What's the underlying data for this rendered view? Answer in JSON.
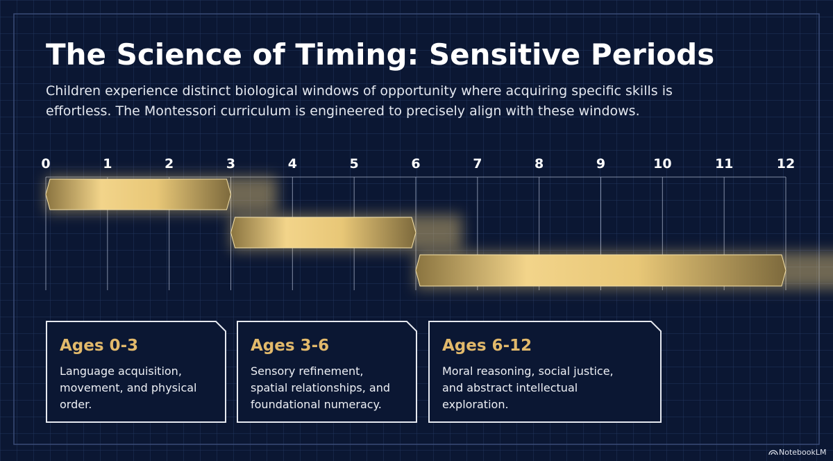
{
  "title": "The Science of Timing: Sensitive Periods",
  "subtitle": [
    "Children experience distinct biological windows of opportunity where acquiring specific skills is",
    "effortless. The Montessori curriculum is engineered to precisely align with these windows."
  ],
  "chart_data": {
    "type": "range",
    "xlim": [
      0,
      12
    ],
    "xticks": [
      0,
      1,
      2,
      3,
      4,
      5,
      6,
      7,
      8,
      9,
      10,
      11,
      12
    ],
    "grid": true,
    "color": "#e9c97a",
    "bars": [
      {
        "start": 0,
        "end": 3
      },
      {
        "start": 3,
        "end": 6
      },
      {
        "start": 6,
        "end": 12
      }
    ]
  },
  "cards": [
    {
      "title": "Ages 0-3",
      "lines": [
        "Language acquisition,",
        "movement, and physical",
        "order."
      ]
    },
    {
      "title": "Ages 3-6",
      "lines": [
        "Sensory refinement,",
        "spatial relationships, and",
        "foundational numeracy."
      ]
    },
    {
      "title": "Ages 6-12",
      "lines": [
        "Moral reasoning, social justice,",
        "and abstract intellectual",
        "exploration."
      ]
    }
  ],
  "brand": "NotebookLM"
}
